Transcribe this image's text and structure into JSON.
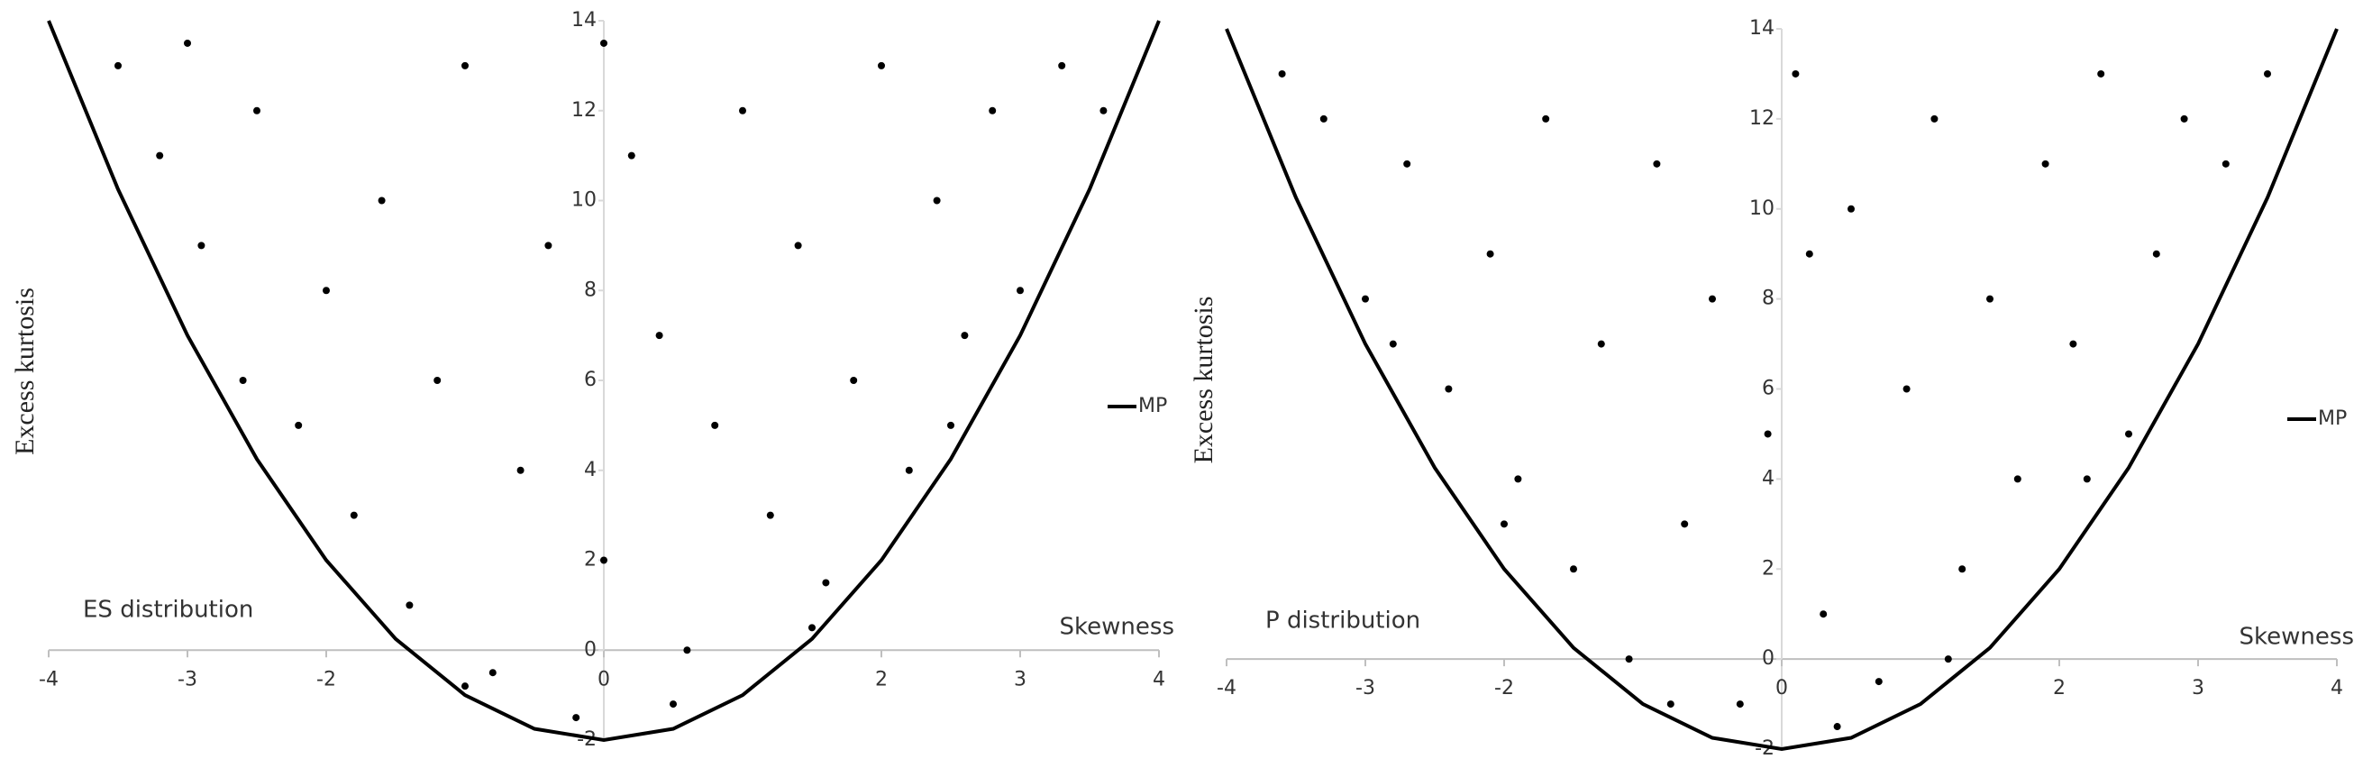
{
  "chart_data": [
    {
      "type": "scatter",
      "annotation": "ES distribution",
      "x_label": "Skewness",
      "y_label": "Excess kurtosis",
      "xlim": [
        -4,
        4
      ],
      "ylim": [
        -2,
        14
      ],
      "xticks": [
        -4,
        -3,
        -2,
        0,
        2,
        3,
        4
      ],
      "yticks": [
        -2,
        0,
        2,
        4,
        6,
        8,
        10,
        12,
        14
      ],
      "points": {
        "color": "#000000",
        "x": [
          -3.5,
          -3.2,
          -2.9,
          -2.5,
          -2.2,
          -2,
          -1.8,
          -1.6,
          -1.4,
          -1.2,
          -1,
          -0.8,
          -0.6,
          -0.4,
          -0.2,
          0,
          0.2,
          0.4,
          0.6,
          0.8,
          1,
          1.2,
          1.4,
          1.6,
          1.8,
          2,
          2.2,
          2.4,
          2.6,
          2.8,
          3,
          3.3,
          3.6,
          -3,
          -1,
          0.5,
          1.5,
          -2.6,
          2.5,
          0
        ],
        "y": [
          13,
          11,
          9,
          12,
          5,
          8,
          3,
          10,
          1,
          6,
          13,
          -0.5,
          4,
          9,
          -1.5,
          2,
          11,
          7,
          0,
          5,
          12,
          3,
          9,
          1.5,
          6,
          13,
          4,
          10,
          7,
          12,
          8,
          13,
          12,
          13.5,
          -0.8,
          -1.2,
          0.5,
          6,
          5,
          13.5
        ]
      },
      "series": [
        {
          "name": "MP",
          "color": "#000000",
          "x": [
            -4,
            -3.5,
            -3,
            -2.5,
            -2,
            -1.5,
            -1,
            -0.5,
            0,
            0.5,
            1,
            1.5,
            2,
            2.5,
            3,
            3.5,
            4
          ],
          "y": [
            14,
            10.25,
            7,
            4.25,
            2,
            0.25,
            -1,
            -1.75,
            -2,
            -1.75,
            -1,
            0.25,
            2,
            4.25,
            7,
            10.25,
            14
          ]
        }
      ]
    },
    {
      "type": "scatter",
      "annotation": "P distribution",
      "x_label": "Skewness",
      "y_label": "Excess kurtosis",
      "xlim": [
        -4,
        4
      ],
      "ylim": [
        -2,
        14
      ],
      "xticks": [
        -4,
        -3,
        -2,
        0,
        2,
        3,
        4
      ],
      "yticks": [
        -2,
        0,
        2,
        4,
        6,
        8,
        10,
        12,
        14
      ],
      "points": {
        "color": "#000000",
        "x": [
          -3.6,
          -3.3,
          -3,
          -2.7,
          -2.4,
          -2.1,
          -1.9,
          -1.7,
          -1.5,
          -1.3,
          -1.1,
          -0.9,
          -0.7,
          -0.5,
          -0.3,
          -0.1,
          0.1,
          0.3,
          0.5,
          0.7,
          0.9,
          1.1,
          1.3,
          1.5,
          1.7,
          1.9,
          2.1,
          2.3,
          2.5,
          2.7,
          2.9,
          3.2,
          3.5,
          -2.8,
          -0.8,
          0.4,
          1.2,
          -2,
          2.2,
          0.2
        ],
        "y": [
          13,
          12,
          8,
          11,
          6,
          9,
          4,
          12,
          2,
          7,
          0,
          11,
          3,
          8,
          -1,
          5,
          13,
          1,
          10,
          -0.5,
          6,
          12,
          2,
          8,
          4,
          11,
          7,
          13,
          5,
          9,
          12,
          11,
          13,
          7,
          -1,
          -1.5,
          0,
          3,
          4,
          9
        ]
      },
      "series": [
        {
          "name": "MP",
          "color": "#000000",
          "x": [
            -4,
            -3.5,
            -3,
            -2.5,
            -2,
            -1.5,
            -1,
            -0.5,
            0,
            0.5,
            1,
            1.5,
            2,
            2.5,
            3,
            3.5,
            4
          ],
          "y": [
            14,
            10.25,
            7,
            4.25,
            2,
            0.25,
            -1,
            -1.75,
            -2,
            -1.75,
            -1,
            0.25,
            2,
            4.25,
            7,
            10.25,
            14
          ]
        }
      ]
    }
  ]
}
